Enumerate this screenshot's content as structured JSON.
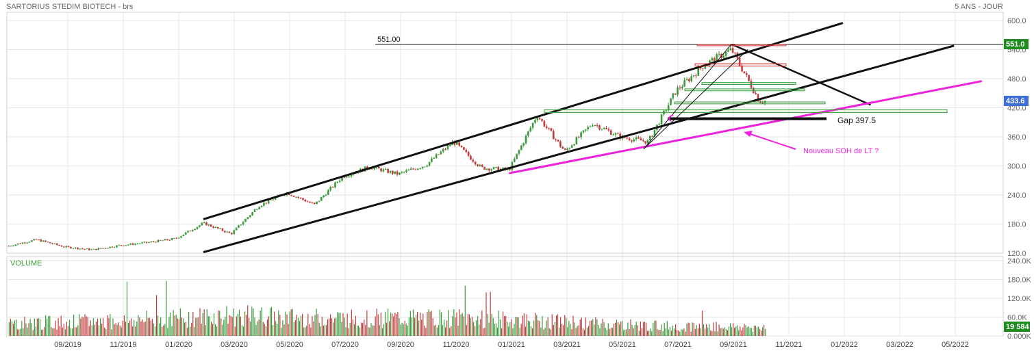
{
  "header": {
    "title": "SARTORIUS STEDIM BIOTECH - brs",
    "period": "5 ANS - JOUR"
  },
  "colors": {
    "grid": "#e6e6e6",
    "up": "#3a9a3a",
    "down": "#c23a3a",
    "axis_text": "#666666",
    "last_badge": "#1e8c1e",
    "current_badge": "#3d6fd6",
    "annotation_magenta": "#ee22dd",
    "trendline": "#111111",
    "volume_label": "#3aa03a",
    "resistance_zone": "#d43c3c",
    "support_zone": "#3aa03a"
  },
  "chart_data": [
    {
      "type": "candlestick",
      "title": "SARTORIUS STEDIM BIOTECH - brs",
      "ylim": [
        120,
        600
      ],
      "y_ticks": [
        "600.0",
        "540.0",
        "480.0",
        "420.0",
        "360.0",
        "300.0",
        "240.0",
        "180.0",
        "120.0"
      ],
      "x_ticks": [
        "09/2019",
        "11/2019",
        "01/2020",
        "03/2020",
        "05/2020",
        "07/2020",
        "09/2020",
        "11/2020",
        "01/2021",
        "03/2021",
        "05/2021",
        "07/2021",
        "09/2021",
        "11/2021",
        "01/2022",
        "03/2022",
        "05/2022"
      ],
      "price_path": {
        "x": [
          "2019-07",
          "2019-08",
          "2019-09",
          "2019-10",
          "2019-11",
          "2019-12",
          "2020-01",
          "2020-02",
          "2020-03",
          "2020-04",
          "2020-05",
          "2020-06",
          "2020-07",
          "2020-08",
          "2020-09",
          "2020-10",
          "2020-11",
          "2020-12",
          "2021-01",
          "2021-02",
          "2021-03",
          "2021-04",
          "2021-05",
          "2021-06",
          "2021-07",
          "2021-08",
          "2021-09",
          "2021-10"
        ],
        "y": [
          135,
          148,
          133,
          127,
          136,
          142,
          150,
          182,
          160,
          218,
          245,
          220,
          278,
          298,
          283,
          302,
          350,
          296,
          292,
          405,
          330,
          388,
          360,
          350,
          455,
          508,
          540,
          434
        ]
      },
      "levels": [
        {
          "label": "551.00",
          "value": 551.0
        },
        {
          "label": "Gap 397.5",
          "value": 397.5
        }
      ],
      "price_badges": {
        "last_high": "551.0",
        "current": "433.6"
      },
      "annotations": [
        "Nouveau SOH de LT ?"
      ],
      "lines": {
        "channel_upper": [
          [
            "2020-02",
            190
          ],
          [
            "2022-01",
            595
          ]
        ],
        "channel_lower": [
          [
            "2020-02",
            122
          ],
          [
            "2022-05",
            548
          ]
        ],
        "support_magenta": [
          [
            "2021-01",
            285
          ],
          [
            "2022-06",
            475
          ]
        ],
        "short_term_down": [
          [
            "2021-09",
            551
          ],
          [
            "2022-02",
            426
          ]
        ]
      }
    },
    {
      "type": "bar",
      "title": "VOLUME",
      "ylim": [
        0,
        240000
      ],
      "y_ticks": [
        "240.0K",
        "180.0K",
        "120.0K",
        "60.0K",
        "0.000K"
      ],
      "last_value_badge": "19 584",
      "profile": {
        "x": [
          "2019-07",
          "2019-11",
          "2020-03",
          "2020-06",
          "2020-11",
          "2021-02",
          "2021-06",
          "2021-10"
        ],
        "typical_volume_k": [
          50,
          60,
          80,
          70,
          70,
          60,
          40,
          35
        ]
      }
    }
  ]
}
